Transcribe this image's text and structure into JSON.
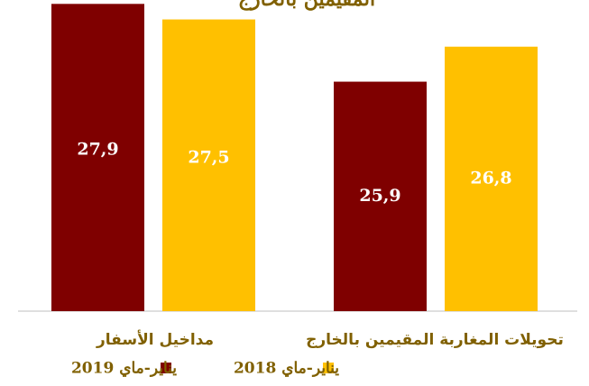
{
  "chart_data": {
    "type": "bar",
    "title": "المقيمين بالخارج",
    "categories": [
      "مداخيل الأسفار",
      "تحويلات المغاربة المقيمين بالخارج"
    ],
    "series": [
      {
        "name": "يناير-ماي 2019",
        "color": "#7f0000",
        "values": [
          27.9,
          25.9
        ],
        "value_labels": [
          "27,9",
          "25,9"
        ]
      },
      {
        "name": "يناير-ماي 2018",
        "color": "#ffc000",
        "values": [
          27.5,
          26.8
        ],
        "value_labels": [
          "27,5",
          "26,8"
        ]
      }
    ],
    "ylim": [
      20,
      28
    ]
  }
}
